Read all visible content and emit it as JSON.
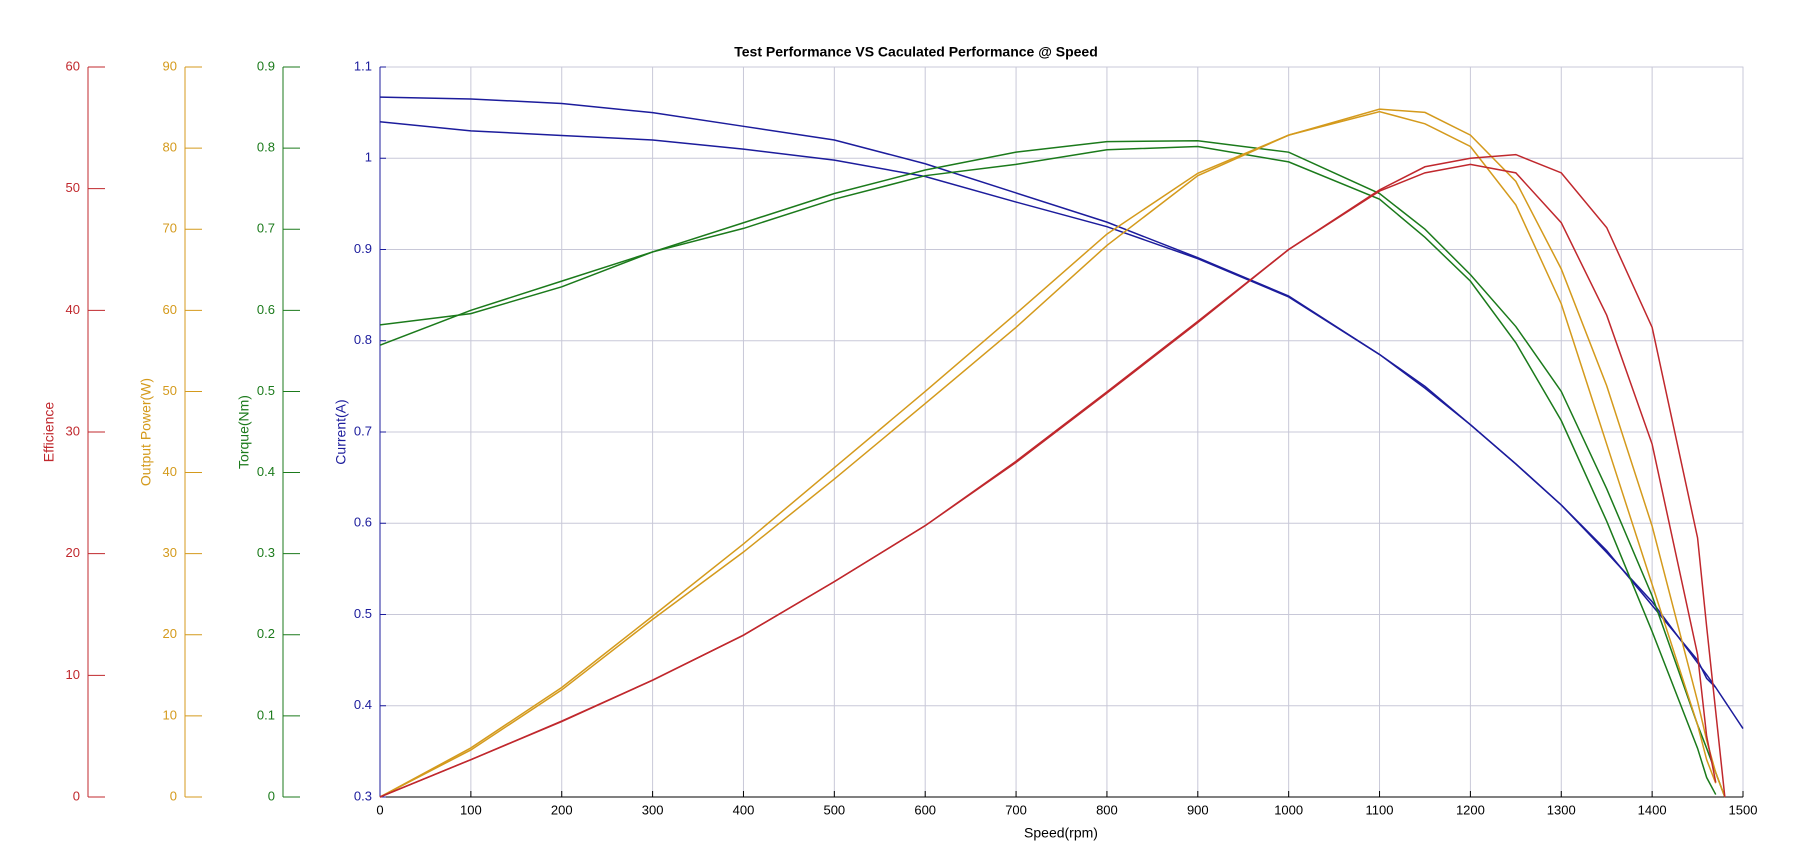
{
  "chart_data": {
    "type": "line",
    "title": "Test Performance VS Caculated Performance @ Speed",
    "xlabel": "Speed(rpm)",
    "xlim": [
      0,
      1500
    ],
    "xticks": [
      0,
      100,
      200,
      300,
      400,
      500,
      600,
      700,
      800,
      900,
      1000,
      1100,
      1200,
      1300,
      1400,
      1500
    ],
    "ylabel": "Current(A)",
    "ycolor": "#1c1c9c",
    "ylim": [
      0.3,
      1.1
    ],
    "yticks": [
      0.3,
      0.4,
      0.5,
      0.6,
      0.7,
      0.8,
      0.9,
      1,
      1.1
    ],
    "y2label": "Torque(Nm)",
    "y2color": "#1b7a1b",
    "y2lim": [
      0,
      0.9
    ],
    "y2ticks": [
      0,
      0.1,
      0.2,
      0.3,
      0.4,
      0.5,
      0.6,
      0.7,
      0.8,
      0.9
    ],
    "y3label": "Output Power(W)",
    "y3color": "#d49a1c",
    "y3lim": [
      0,
      90
    ],
    "y3ticks": [
      0,
      10,
      20,
      30,
      40,
      50,
      60,
      70,
      80,
      90
    ],
    "y4label": "Efficience",
    "y4color": "#c0282d",
    "y4lim": [
      0,
      60
    ],
    "y4ticks": [
      0,
      10,
      20,
      30,
      40,
      50,
      60
    ],
    "grid": true,
    "x": [
      0,
      100,
      200,
      300,
      400,
      500,
      600,
      700,
      800,
      900,
      1000,
      1100,
      1150,
      1200,
      1250,
      1300,
      1350,
      1400,
      1450,
      1460,
      1470,
      1480,
      1490,
      1500
    ],
    "series": [
      {
        "color": "#1c1c9c",
        "axis": "y",
        "values": [
          1.067,
          1.065,
          1.06,
          1.05,
          1.035,
          1.02,
          0.994,
          0.962,
          0.93,
          0.891,
          0.849,
          0.785,
          0.748,
          0.708,
          0.665,
          0.62,
          0.568,
          0.514,
          0.447,
          0.434,
          0.42,
          0.405,
          0.39,
          0.375
        ]
      },
      {
        "color": "#1c1c9c",
        "axis": "y",
        "values": [
          1.04,
          1.03,
          1.025,
          1.02,
          1.01,
          0.998,
          0.98,
          0.952,
          0.925,
          0.89,
          0.848,
          0.785,
          0.75,
          0.708,
          0.665,
          0.62,
          0.57,
          0.51,
          0.45,
          0.43,
          0.42,
          null,
          null,
          null
        ]
      },
      {
        "color": "#1b7a1b",
        "axis": "y2",
        "values": [
          0.557,
          0.6,
          0.636,
          0.672,
          0.708,
          0.744,
          0.773,
          0.795,
          0.808,
          0.809,
          0.795,
          0.744,
          0.7,
          0.644,
          0.58,
          0.5,
          0.38,
          0.248,
          0.089,
          0.06,
          0.03,
          0,
          null,
          null
        ]
      },
      {
        "color": "#1b7a1b",
        "axis": "y2",
        "values": [
          0.582,
          0.596,
          0.629,
          0.672,
          0.701,
          0.737,
          0.766,
          0.78,
          0.798,
          0.802,
          0.783,
          0.737,
          0.69,
          0.636,
          0.56,
          0.464,
          0.34,
          0.204,
          0.06,
          0.024,
          0.003,
          null,
          null,
          null
        ]
      },
      {
        "color": "#d49a1c",
        "axis": "y3",
        "values": [
          0,
          6.05,
          13.5,
          22.3,
          31.2,
          40.6,
          50,
          59.6,
          69.4,
          76.9,
          81.6,
          84.8,
          84.4,
          81.6,
          75.9,
          65.1,
          50.7,
          33.4,
          11.8,
          7,
          3,
          0,
          null,
          null
        ]
      },
      {
        "color": "#d49a1c",
        "axis": "y3",
        "values": [
          0,
          5.8,
          13.2,
          21.9,
          30.2,
          39.2,
          48.5,
          57.9,
          68,
          76.6,
          81.6,
          84.5,
          83,
          80.2,
          73,
          60.8,
          43.5,
          26.2,
          8.9,
          4.6,
          1.7,
          null,
          null,
          null
        ]
      },
      {
        "color": "#c0282d",
        "axis": "y4",
        "values": [
          0,
          3.07,
          6.24,
          9.6,
          13.3,
          17.7,
          22.3,
          27.6,
          33.3,
          39.1,
          45,
          49.9,
          51.8,
          52.5,
          52.8,
          51.3,
          46.8,
          38.6,
          21.3,
          14,
          7,
          0,
          null,
          null
        ]
      },
      {
        "color": "#c0282d",
        "axis": "y4",
        "values": [
          0,
          3.07,
          6.2,
          9.6,
          13.3,
          17.7,
          22.3,
          27.5,
          33.2,
          39,
          45,
          49.8,
          51.3,
          52,
          51.3,
          47.2,
          39.6,
          29,
          11.7,
          5,
          1.2,
          null,
          null,
          null
        ]
      }
    ]
  }
}
